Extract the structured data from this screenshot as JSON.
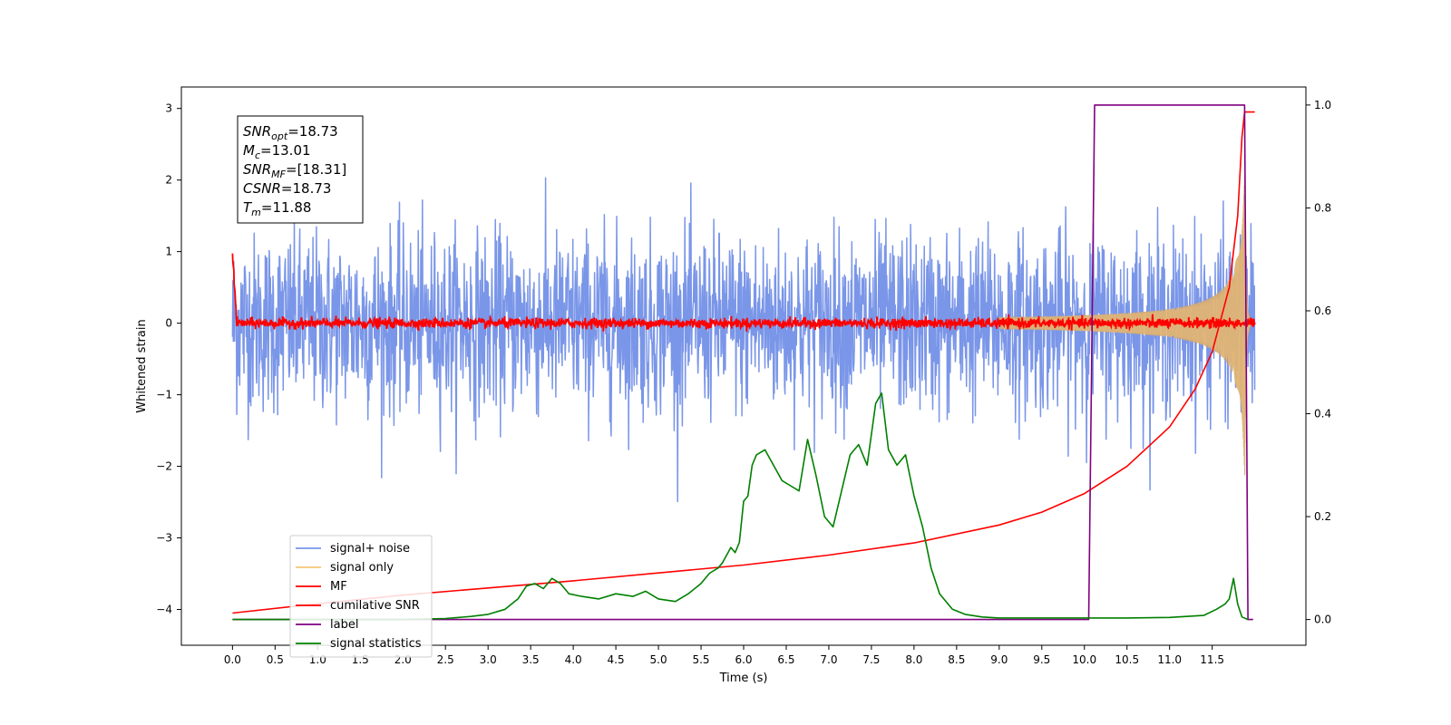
{
  "chart_data": {
    "type": "line",
    "xlabel": "Time (s)",
    "ylabel": "Whitened strain",
    "xlim": [
      -0.6,
      12.6
    ],
    "ylim": [
      -4.5,
      3.3
    ],
    "y2lim": [
      -0.05,
      1.035
    ],
    "x_ticks": [
      "0.0",
      "0.5",
      "1.0",
      "1.5",
      "2.0",
      "2.5",
      "3.0",
      "3.5",
      "4.0",
      "4.5",
      "5.0",
      "5.5",
      "6.0",
      "6.5",
      "7.0",
      "7.5",
      "8.0",
      "8.5",
      "9.0",
      "9.5",
      "10.0",
      "10.5",
      "11.0",
      "11.5"
    ],
    "y_ticks": [
      "3",
      "2",
      "1",
      "0",
      "−1",
      "−2",
      "−3",
      "−4"
    ],
    "y2_ticks": [
      "1.0",
      "0.8",
      "0.6",
      "0.4",
      "0.2",
      "0.0"
    ],
    "grid": false,
    "legend_position": "lower-left",
    "annotation": {
      "lines": [
        {
          "pre": "SNR",
          "sub": "opt",
          "post": "=18.73"
        },
        {
          "pre": "M",
          "sub": "c",
          "post": "=13.01"
        },
        {
          "pre": "SNR",
          "sub": "MF",
          "post": "=[18.31]"
        },
        {
          "pre": "CSNR",
          "sub": "",
          "post": "=18.73"
        },
        {
          "pre": "T",
          "sub": "m",
          "post": "=11.88"
        }
      ]
    },
    "series": [
      {
        "name": "signal+ noise",
        "color": "#7a96e8",
        "axis": "left",
        "style": "noise",
        "x_range": [
          0,
          12.0
        ],
        "amplitude": 2.55
      },
      {
        "name": "signal only",
        "color": "#f5c676",
        "axis": "left",
        "style": "chirp",
        "x_range": [
          0,
          12.0
        ],
        "merger_time": 11.88
      },
      {
        "name": "MF",
        "color": "#ff0000",
        "axis": "left",
        "style": "noise-small",
        "x_range": [
          0,
          12.0
        ],
        "start_value": 1.0
      },
      {
        "name": "cumilative SNR",
        "color": "#ff0000",
        "axis": "left",
        "x": [
          0.0,
          1.0,
          2.0,
          3.0,
          4.0,
          5.0,
          6.0,
          7.0,
          8.0,
          9.0,
          9.5,
          10.0,
          10.5,
          11.0,
          11.3,
          11.5,
          11.7,
          11.8,
          11.85,
          11.88,
          12.0
        ],
        "y": [
          -4.05,
          -3.92,
          -3.8,
          -3.7,
          -3.6,
          -3.49,
          -3.38,
          -3.24,
          -3.07,
          -2.82,
          -2.64,
          -2.38,
          -2.0,
          -1.45,
          -0.92,
          -0.4,
          0.5,
          1.5,
          2.6,
          2.95,
          2.95
        ]
      },
      {
        "name": "label",
        "color": "#800080",
        "axis": "right",
        "x": [
          0.0,
          10.05,
          10.12,
          11.88,
          11.92,
          11.98
        ],
        "y": [
          0.0,
          0.0,
          1.0,
          1.0,
          0.0,
          0.0
        ]
      },
      {
        "name": "signal statistics",
        "color": "#008000",
        "axis": "right",
        "x": [
          0.0,
          1.0,
          2.0,
          2.5,
          2.8,
          3.0,
          3.2,
          3.35,
          3.45,
          3.55,
          3.65,
          3.75,
          3.85,
          3.95,
          4.1,
          4.3,
          4.5,
          4.7,
          4.85,
          5.0,
          5.2,
          5.35,
          5.5,
          5.6,
          5.7,
          5.75,
          5.85,
          5.9,
          5.95,
          6.0,
          6.05,
          6.1,
          6.15,
          6.25,
          6.35,
          6.45,
          6.55,
          6.65,
          6.75,
          6.85,
          6.95,
          7.05,
          7.15,
          7.25,
          7.35,
          7.45,
          7.55,
          7.62,
          7.7,
          7.8,
          7.9,
          8.0,
          8.1,
          8.2,
          8.3,
          8.45,
          8.6,
          8.8,
          9.0,
          9.5,
          10.0,
          10.5,
          11.0,
          11.2,
          11.4,
          11.55,
          11.65,
          11.7,
          11.75,
          11.8,
          11.85,
          11.92
        ],
        "y": [
          0.0,
          0.0,
          0.0,
          0.002,
          0.006,
          0.01,
          0.02,
          0.04,
          0.065,
          0.07,
          0.06,
          0.08,
          0.07,
          0.05,
          0.045,
          0.04,
          0.05,
          0.045,
          0.055,
          0.04,
          0.035,
          0.05,
          0.07,
          0.09,
          0.1,
          0.11,
          0.14,
          0.13,
          0.15,
          0.23,
          0.24,
          0.3,
          0.32,
          0.33,
          0.3,
          0.27,
          0.26,
          0.25,
          0.35,
          0.28,
          0.2,
          0.18,
          0.25,
          0.32,
          0.34,
          0.3,
          0.42,
          0.44,
          0.33,
          0.3,
          0.32,
          0.24,
          0.18,
          0.1,
          0.05,
          0.02,
          0.01,
          0.005,
          0.003,
          0.003,
          0.003,
          0.003,
          0.004,
          0.006,
          0.008,
          0.02,
          0.03,
          0.04,
          0.08,
          0.03,
          0.005,
          0.0
        ]
      }
    ]
  }
}
